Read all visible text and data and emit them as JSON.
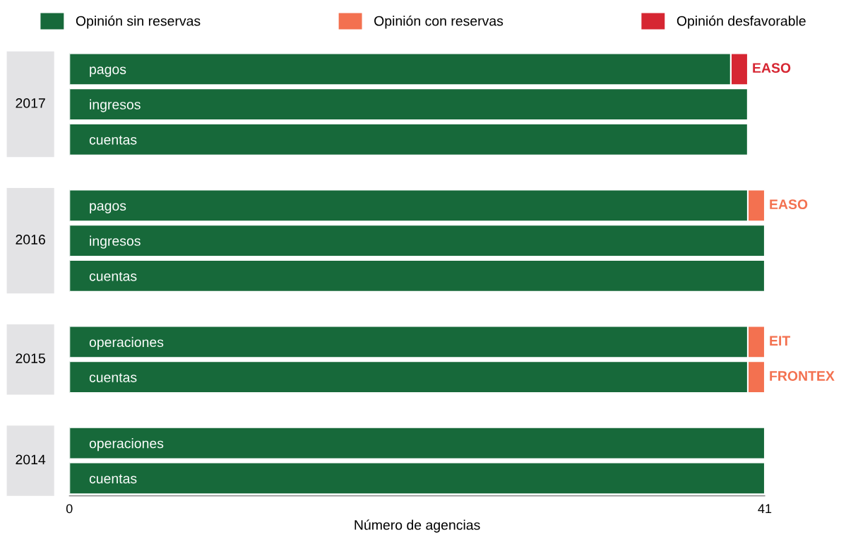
{
  "chart_data": [
    {
      "type": "bar",
      "orientation": "horizontal",
      "stacked": true,
      "ylabel": "2017",
      "legend": "top",
      "categories": [
        "pagos",
        "ingresos",
        "cuentas"
      ],
      "xlim": [
        0,
        41
      ],
      "xticks": [
        0,
        41
      ],
      "tick_labels": "y",
      "series": [
        {
          "name": "Opinión sin reservas",
          "color": "#17693a",
          "values": [
            39,
            40,
            40
          ]
        },
        {
          "name": "Opinión con reservas",
          "color": "#f37150",
          "values": [
            null,
            null,
            null
          ]
        },
        {
          "name": "Opinión desfavorable",
          "color": "#d62632",
          "values": [
            1,
            null,
            null
          ],
          "value_labels": [
            "EASO",
            null,
            null
          ]
        }
      ]
    },
    {
      "type": "bar",
      "orientation": "horizontal",
      "stacked": true,
      "ylabel": "2016",
      "categories": [
        "pagos",
        "ingresos",
        "cuentas"
      ],
      "xlim": [
        0,
        41
      ],
      "xticks": [
        0,
        41
      ],
      "tick_labels": "y",
      "series": [
        {
          "color": "#17693a",
          "values": [
            40,
            41,
            41
          ]
        },
        {
          "color": "#f37150",
          "values": [
            1,
            null,
            null
          ],
          "value_labels": [
            "EASO",
            null,
            null
          ]
        }
      ]
    },
    {
      "type": "bar",
      "orientation": "horizontal",
      "stacked": true,
      "ylabel": "2015",
      "categories": [
        "operaciones",
        "cuentas"
      ],
      "xlim": [
        0,
        41
      ],
      "xticks": [
        0,
        41
      ],
      "tick_labels": "y",
      "series": [
        {
          "color": "#17693a",
          "values": [
            40,
            40
          ]
        },
        {
          "color": "#f37150",
          "values": [
            1,
            1
          ],
          "value_labels": [
            "EIT",
            "FRONTEX"
          ]
        }
      ]
    },
    {
      "type": "bar",
      "orientation": "horizontal",
      "stacked": true,
      "ylabel": "2014",
      "xlabel": "Número de agencias",
      "categories": [
        "operaciones",
        "cuentas"
      ],
      "xlim": [
        0,
        41
      ],
      "xticks": [
        0,
        41
      ],
      "series": [
        {
          "color": "#17693a",
          "values": [
            41,
            41
          ]
        }
      ]
    }
  ]
}
